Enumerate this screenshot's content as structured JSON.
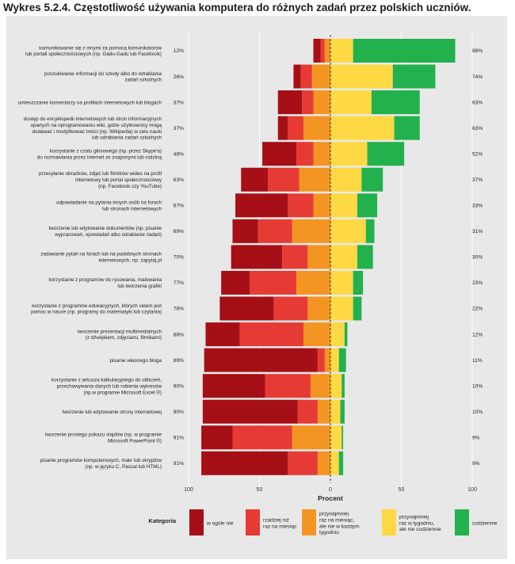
{
  "title": "Wykres 5.2.4. Częstotliwość używania komputera do różnych zadań przez polskich uczniów.",
  "chart_data": {
    "type": "bar",
    "subtype": "diverging-stacked-horizontal",
    "xlabel": "Procent",
    "xlim": [
      -100,
      100
    ],
    "xticks": [
      -100,
      -50,
      0,
      50,
      100
    ],
    "xtick_labels": [
      "100",
      "50",
      "0",
      "50",
      "100"
    ],
    "legend_title": "Kategoria",
    "legend_position": "bottom",
    "series": [
      {
        "name": "w ogóle nie",
        "color": "#a50f15",
        "side": "negative"
      },
      {
        "name": "rzadziej niż\nraz na miesiąc",
        "color": "#e63b35",
        "side": "negative"
      },
      {
        "name": "przynajmniej\nraz na miesiąc,\nale nie w każdym\ntygodniu",
        "color": "#f39522",
        "side": "negative"
      },
      {
        "name": "przynajmniej\nraz w tygodniu,\nale nie codziennie",
        "color": "#fed943",
        "side": "positive"
      },
      {
        "name": "codziennie",
        "color": "#22b14c",
        "side": "positive"
      }
    ],
    "categories": [
      {
        "label": "komunikowanie się z innymi za pomocą komunikatorów\nlub portali społecznościowych (np. Gadu-Gadu lub Facebook)",
        "left_pct": "12%",
        "right_pct": "88%",
        "values": [
          5,
          3,
          4,
          16,
          72
        ]
      },
      {
        "label": "poszukiwanie informacji do szkoły albo do odrabiania\nzadań szkolnych",
        "left_pct": "26%",
        "right_pct": "74%",
        "values": [
          5,
          8,
          13,
          44,
          30
        ]
      },
      {
        "label": "umieszczanie komentarzy na profilach internetowych lub blogach",
        "left_pct": "37%",
        "right_pct": "63%",
        "values": [
          17,
          8,
          12,
          29,
          34
        ]
      },
      {
        "label": "dostęp do encyklopedii internetowych lub stron informacyjnych\nopartych na oprogramowaniu wiki, gdzie użytkownicy mogą\ndodawać i modyfikować treści (np. Wikipedia) w celu nauki\nlub odrabiania zadań szkolnych",
        "left_pct": "37%",
        "right_pct": "63%",
        "values": [
          7,
          11,
          19,
          45,
          18
        ]
      },
      {
        "label": "korzystanie z czatu głosowego (np. przez Skype'a)\ndo rozmawiania przez Internet ze znajomymi lub rodziną",
        "left_pct": "48%",
        "right_pct": "52%",
        "values": [
          24,
          12,
          12,
          26,
          26
        ]
      },
      {
        "label": "przesyłanie obrazków, zdjęć lub filmików wideo na profil\ninternetowy lub portal społecznościowy\n(np. Facebook czy YouTube)",
        "left_pct": "63%",
        "right_pct": "37%",
        "values": [
          19,
          22,
          22,
          22,
          15
        ]
      },
      {
        "label": "odpowiadanie na pytania innych osób na forach\nlub stronach internetowych",
        "left_pct": "67%",
        "right_pct": "33%",
        "values": [
          37,
          18,
          12,
          19,
          14
        ]
      },
      {
        "label": "tworzenie lub edytowanie dokumentów (np. pisanie\nwypracowań, opowiadań albo odrabianie zadań)",
        "left_pct": "69%",
        "right_pct": "31%",
        "values": [
          18,
          24,
          27,
          25,
          6
        ]
      },
      {
        "label": "zadawanie pytań na forach lub na podobnych stronach\ninternetowych, np. zapytaj.pl",
        "left_pct": "70%",
        "right_pct": "30%",
        "values": [
          36,
          18,
          16,
          19,
          11
        ]
      },
      {
        "label": "korzystanie z programów do rysowania, malowania\nlub tworzenia grafiki",
        "left_pct": "77%",
        "right_pct": "23%",
        "values": [
          20,
          33,
          24,
          16,
          7
        ]
      },
      {
        "label": "korzystanie z programów edukacyjnych, których celem jest\npomoc w nauce (np. programy do matematyki lub czytania)",
        "left_pct": "78%",
        "right_pct": "22%",
        "values": [
          38,
          24,
          16,
          16,
          6
        ]
      },
      {
        "label": "tworzenie prezentacji multimedialnych\n(z dźwiękiem, zdjęciami, filmikami)",
        "left_pct": "88%",
        "right_pct": "12%",
        "values": [
          24,
          45,
          19,
          10,
          2
        ]
      },
      {
        "label": "pisanie własnego bloga",
        "left_pct": "89%",
        "right_pct": "11%",
        "values": [
          80,
          5,
          4,
          6,
          5
        ]
      },
      {
        "label": "korzystanie z arkusza kalkulacyjnego do obliczeń,\nprzechowywania danych lub robienia wykresów\n(np.w programie Microsoft Excel ®)",
        "left_pct": "90%",
        "right_pct": "10%",
        "values": [
          44,
          32,
          14,
          8,
          2
        ]
      },
      {
        "label": "tworzenie lub edytowanie strony internetowej",
        "left_pct": "90%",
        "right_pct": "10%",
        "values": [
          67,
          14,
          9,
          7,
          3
        ]
      },
      {
        "label": "tworzenie prostego pokazu slajdów (np. w programie\nMicrosoft PowerPoint ®)",
        "left_pct": "91%",
        "right_pct": "9%",
        "values": [
          22,
          42,
          27,
          8,
          1
        ]
      },
      {
        "label": "pisanie programów komputerowych, makr lub skryptów\n(np. w języku C, Pascal lub HTML)",
        "left_pct": "91%",
        "right_pct": "9%",
        "values": [
          61,
          21,
          9,
          6,
          3
        ]
      }
    ]
  }
}
